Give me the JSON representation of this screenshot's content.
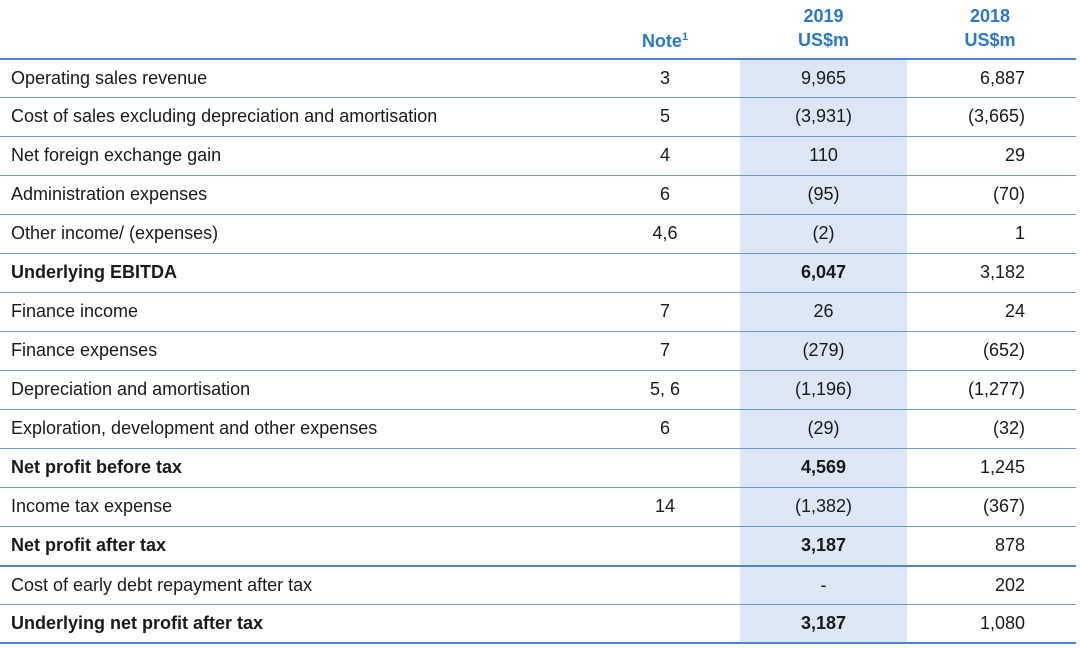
{
  "header": {
    "note_label": "Note",
    "note_sup": "1",
    "col2019_year": "2019",
    "col2019_unit": "US$m",
    "col2018_year": "2018",
    "col2018_unit": "US$m"
  },
  "rows": [
    {
      "label": "Operating sales revenue",
      "note": "3",
      "v2019": "9,965",
      "v2018": "6,887",
      "bold": false
    },
    {
      "label": "Cost of sales excluding depreciation and amortisation",
      "note": "5",
      "v2019": "(3,931)",
      "v2018": "(3,665)",
      "bold": false
    },
    {
      "label": "Net foreign exchange gain",
      "note": "4",
      "v2019": "110",
      "v2018": "29",
      "bold": false
    },
    {
      "label": "Administration expenses",
      "note": "6",
      "v2019": "(95)",
      "v2018": "(70)",
      "bold": false
    },
    {
      "label": "Other income/ (expenses)",
      "note": "4,6",
      "v2019": "(2)",
      "v2018": "1",
      "bold": false
    },
    {
      "label": "Underlying EBITDA",
      "note": "",
      "v2019": "6,047",
      "v2018": "3,182",
      "bold": true
    },
    {
      "label": "Finance income",
      "note": "7",
      "v2019": "26",
      "v2018": "24",
      "bold": false
    },
    {
      "label": "Finance expenses",
      "note": "7",
      "v2019": "(279)",
      "v2018": "(652)",
      "bold": false
    },
    {
      "label": "Depreciation and amortisation",
      "note": "5, 6",
      "v2019": "(1,196)",
      "v2018": "(1,277)",
      "bold": false
    },
    {
      "label": "Exploration, development and other expenses",
      "note": "6",
      "v2019": "(29)",
      "v2018": "(32)",
      "bold": false
    },
    {
      "label": "Net profit before tax",
      "note": "",
      "v2019": "4,569",
      "v2018": "1,245",
      "bold": true
    },
    {
      "label": "Income tax expense",
      "note": "14",
      "v2019": "(1,382)",
      "v2018": "(367)",
      "bold": false
    },
    {
      "label": "Net profit after tax",
      "note": "",
      "v2019": "3,187",
      "v2018": "878",
      "bold": true
    },
    {
      "label": "Cost of early debt repayment after tax",
      "note": "",
      "v2019": "-",
      "v2018": "202",
      "bold": false
    },
    {
      "label": "Underlying net profit after tax",
      "note": "",
      "v2019": "3,187",
      "v2018": "1,080",
      "bold": true
    }
  ],
  "colors": {
    "header_text": "#2a77c4",
    "highlight_column": "#dde6f4",
    "rule": "#6a9bd3"
  }
}
